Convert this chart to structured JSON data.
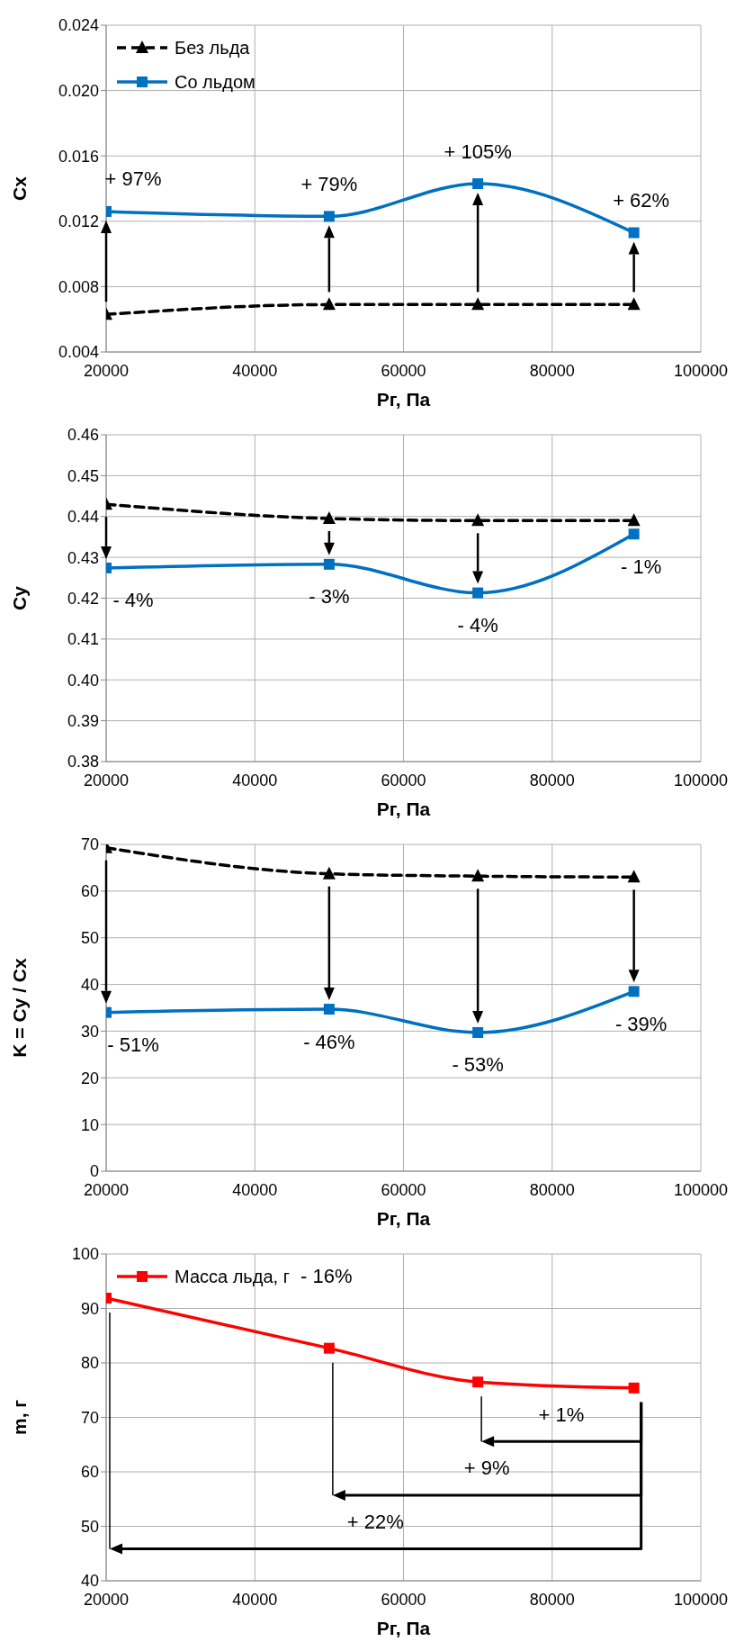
{
  "chart_data": [
    {
      "type": "line",
      "x": [
        20000,
        50000,
        70000,
        91000
      ],
      "xlim": [
        20000,
        100000
      ],
      "xticks": [
        20000,
        40000,
        60000,
        80000,
        100000
      ],
      "ylim": [
        0.004,
        0.024
      ],
      "yticks": [
        0.004,
        0.008,
        0.012,
        0.016,
        {
          "value": 0.02,
          "label": "0.020"
        },
        0.024
      ],
      "xlabel": "Рг, Па",
      "ylabel": "Cx",
      "grid": true,
      "legend": "top left",
      "series": [
        {
          "name": "Без льда",
          "color": "#000000",
          "marker": "triangle",
          "line_style": "dashed",
          "values": [
            0.0063,
            0.0069,
            0.0069,
            0.0069
          ]
        },
        {
          "name": "Со льдом",
          "color": "#0070c0",
          "marker": "square",
          "line_style": "solid",
          "values": [
            0.0126,
            0.0123,
            0.0143,
            0.0113
          ]
        }
      ],
      "annotations": [
        "+ 97%",
        "+ 79%",
        "+ 105%",
        "+ 62%"
      ]
    },
    {
      "type": "line",
      "x": [
        20000,
        50000,
        70000,
        91000
      ],
      "xlim": [
        20000,
        100000
      ],
      "xticks": [
        20000,
        40000,
        60000,
        80000,
        100000
      ],
      "ylim": [
        0.38,
        0.46
      ],
      "yticks": [
        0.38,
        0.39,
        {
          "value": 0.4,
          "label": "0.40"
        },
        0.41,
        0.42,
        0.43,
        0.44,
        0.45,
        0.46
      ],
      "xlabel": "Рг, Па",
      "ylabel": "Cy",
      "grid": true,
      "series": [
        {
          "color": "#000000",
          "marker": "triangle",
          "line_style": "dashed",
          "values": [
            0.443,
            0.4395,
            0.439,
            0.439
          ]
        },
        {
          "color": "#0070c0",
          "marker": "square",
          "line_style": "solid",
          "values": [
            0.4274,
            0.4283,
            0.4213,
            0.4357
          ]
        }
      ],
      "annotations": [
        "- 4%",
        "- 3%",
        "- 4%",
        "- 1%"
      ]
    },
    {
      "type": "line",
      "x": [
        20000,
        50000,
        70000,
        91000
      ],
      "xlim": [
        20000,
        100000
      ],
      "xticks": [
        20000,
        40000,
        60000,
        80000,
        100000
      ],
      "ylim": [
        0,
        70
      ],
      "yticks": [
        0,
        10,
        20,
        30,
        40,
        50,
        60,
        70
      ],
      "xlabel": "Рг, Па",
      "ylabel": "K = Cy / Cx",
      "grid": true,
      "series": [
        {
          "color": "#000000",
          "marker": "triangle",
          "line_style": "dashed",
          "values": [
            69.3,
            63.7,
            63.2,
            63
          ]
        },
        {
          "color": "#0070c0",
          "marker": "square",
          "line_style": "solid",
          "values": [
            34,
            34.7,
            29.7,
            38.5
          ]
        }
      ],
      "annotations": [
        "- 51%",
        "- 46%",
        "- 53%",
        "- 39%"
      ]
    },
    {
      "type": "line",
      "x": [
        20000,
        50000,
        70000,
        91000
      ],
      "xlim": [
        20000,
        100000
      ],
      "xticks": [
        20000,
        40000,
        60000,
        80000,
        100000
      ],
      "ylim": [
        40,
        100
      ],
      "yticks": [
        40,
        50,
        60,
        70,
        80,
        90,
        100
      ],
      "xlabel": "Рг, Па",
      "ylabel": "m, г",
      "grid": true,
      "legend": "top left",
      "series": [
        {
          "name": "Масса льда, г",
          "color": "#ff0000",
          "marker": "square",
          "line_style": "solid",
          "values": [
            91.9,
            82.7,
            76.5,
            75.4
          ]
        }
      ],
      "annotations": [
        "- 16%",
        "+ 1%",
        "+ 9%",
        "+ 22%"
      ]
    }
  ]
}
